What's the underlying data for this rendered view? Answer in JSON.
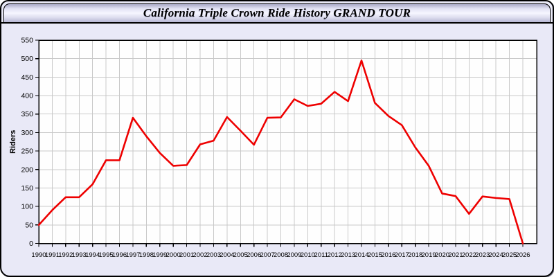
{
  "window": {
    "title": "California Triple Crown Ride History GRAND TOUR"
  },
  "colors": {
    "line": "#ee0000",
    "window_background": "#e9e9f7",
    "plot_background": "#fefefe",
    "gridline": "#c9c9c9",
    "axis": "#000000"
  },
  "chart_data": {
    "type": "line",
    "title": "California Triple Crown Ride History GRAND TOUR",
    "xlabel": "",
    "ylabel": "Riders",
    "ylim": [
      0,
      550
    ],
    "y_ticks": [
      0,
      50,
      100,
      150,
      200,
      250,
      300,
      350,
      400,
      450,
      500,
      550
    ],
    "grid": true,
    "legend": "none",
    "x": [
      1990,
      1991,
      1992,
      1993,
      1994,
      1995,
      1996,
      1997,
      1998,
      1999,
      2000,
      2001,
      2002,
      2003,
      2004,
      2005,
      2006,
      2007,
      2008,
      2009,
      2010,
      2011,
      2012,
      2013,
      2014,
      2015,
      2016,
      2017,
      2018,
      2019,
      2020,
      2021,
      2022,
      2023,
      2024,
      2025,
      2026
    ],
    "series": [
      {
        "name": "Riders",
        "color": "#ee0000",
        "values": [
          50,
          90,
          125,
          125,
          160,
          225,
          225,
          340,
          290,
          245,
          210,
          212,
          268,
          278,
          342,
          305,
          267,
          340,
          341,
          390,
          372,
          378,
          410,
          385,
          495,
          380,
          345,
          320,
          260,
          210,
          135,
          128,
          80,
          127,
          123,
          120,
          0
        ]
      }
    ]
  }
}
